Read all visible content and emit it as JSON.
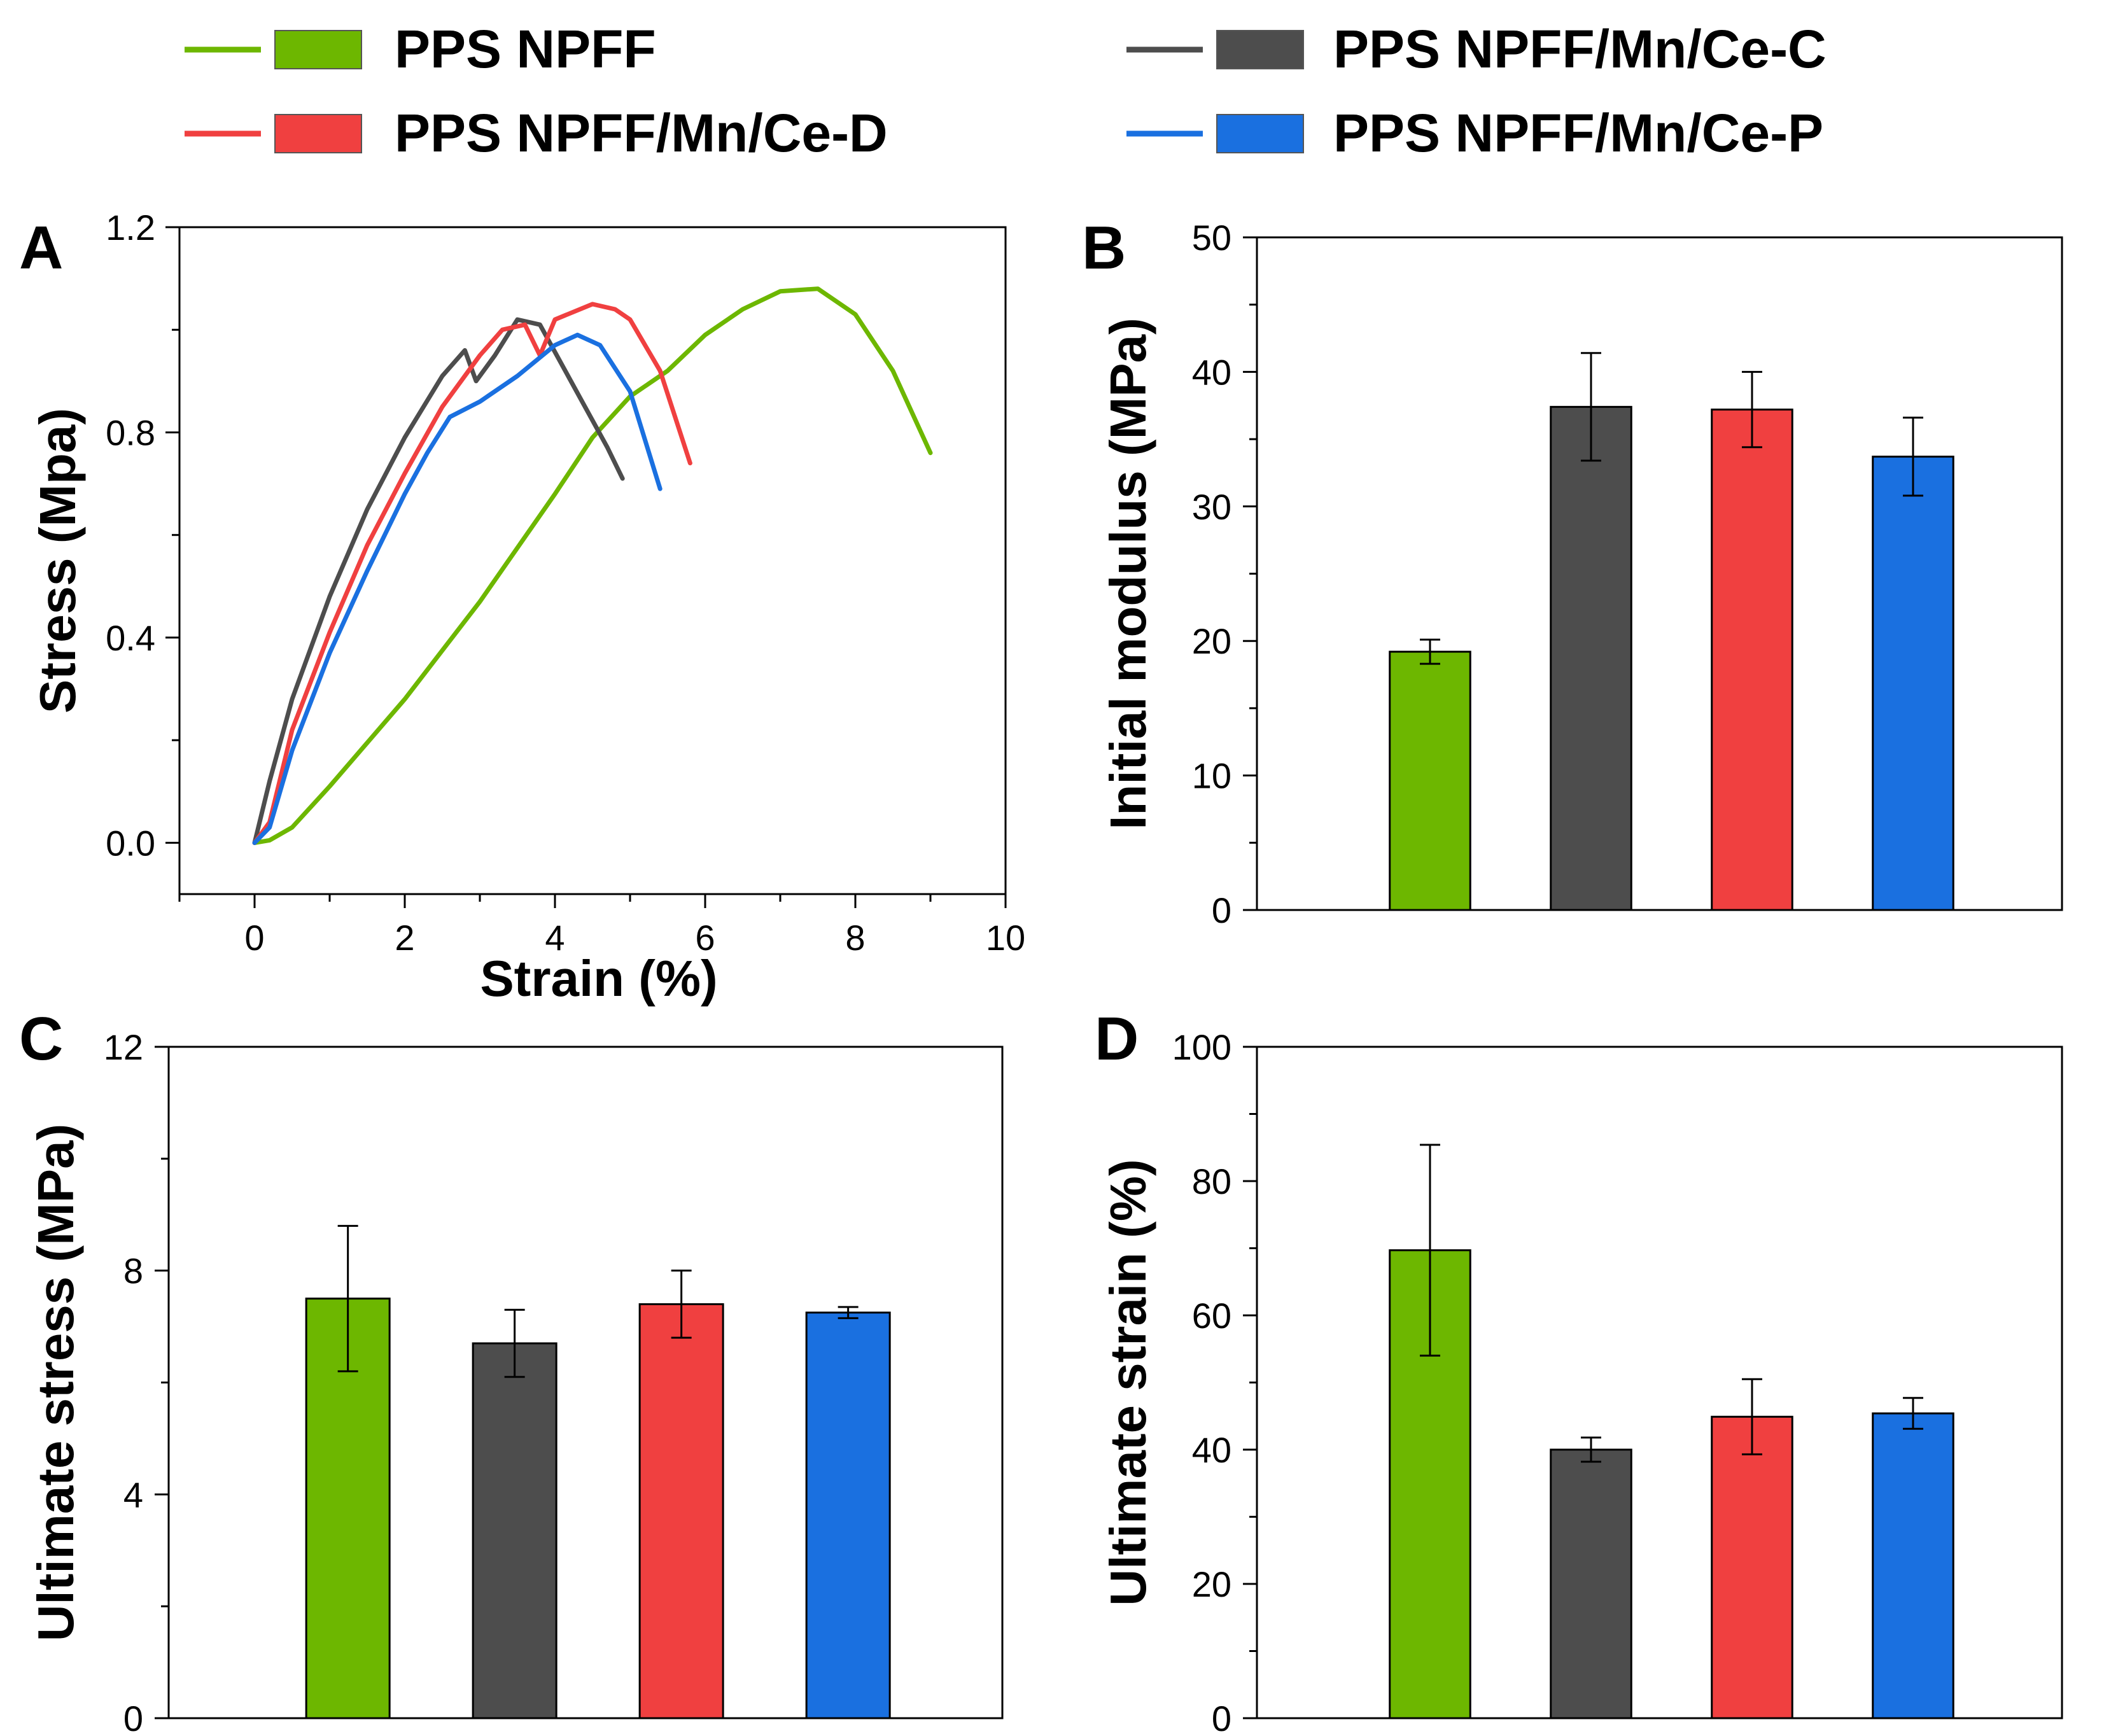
{
  "colors": {
    "green": "#6DB700",
    "gray": "#4D4D4D",
    "red": "#F04040",
    "blue": "#1A70E0",
    "axis": "#000000"
  },
  "legend": [
    {
      "label": "PPS NPFF",
      "color": "#6DB700"
    },
    {
      "label": "PPS NPFF/Mn/Ce-C",
      "color": "#4D4D4D"
    },
    {
      "label": "PPS NPFF/Mn/Ce-D",
      "color": "#F04040"
    },
    {
      "label": "PPS NPFF/Mn/Ce-P",
      "color": "#1A70E0"
    }
  ],
  "chart_data": [
    {
      "panel": "A",
      "type": "line",
      "xlabel": "Strain (%)",
      "ylabel": "Stress (Mpa)",
      "xlim": [
        -1,
        10
      ],
      "ylim": [
        -0.1,
        1.2
      ],
      "xticks": [
        0,
        2,
        4,
        6,
        8,
        10
      ],
      "yticks": [
        0.0,
        0.4,
        0.8,
        1.2
      ],
      "xtick_labels": [
        "0",
        "2",
        "4",
        "6",
        "8",
        "10"
      ],
      "ytick_labels": [
        "0.0",
        "0.4",
        "0.8",
        "1.2"
      ],
      "series": [
        {
          "name": "PPS NPFF",
          "color": "#6DB700",
          "x": [
            0,
            0.2,
            0.5,
            1.0,
            2.0,
            3.0,
            4.0,
            4.5,
            5.0,
            5.5,
            6.0,
            6.5,
            7.0,
            7.5,
            8.0,
            8.5,
            9.0
          ],
          "y": [
            0,
            0.005,
            0.03,
            0.11,
            0.28,
            0.47,
            0.68,
            0.79,
            0.87,
            0.92,
            0.99,
            1.04,
            1.075,
            1.08,
            1.03,
            0.92,
            0.76
          ]
        },
        {
          "name": "PPS NPFF/Mn/Ce-C",
          "color": "#4D4D4D",
          "x": [
            0,
            0.2,
            0.5,
            1.0,
            1.5,
            2.0,
            2.5,
            2.8,
            2.95,
            3.2,
            3.5,
            3.8,
            4.1,
            4.4,
            4.7,
            4.9
          ],
          "y": [
            0,
            0.12,
            0.28,
            0.48,
            0.65,
            0.79,
            0.91,
            0.96,
            0.9,
            0.95,
            1.02,
            1.01,
            0.93,
            0.85,
            0.77,
            0.71
          ]
        },
        {
          "name": "PPS NPFF/Mn/Ce-D",
          "color": "#F04040",
          "x": [
            0,
            0.2,
            0.5,
            1.0,
            1.5,
            2.0,
            2.5,
            3.0,
            3.3,
            3.6,
            3.8,
            4.0,
            4.5,
            4.8,
            5.0,
            5.4,
            5.8
          ],
          "y": [
            0,
            0.04,
            0.22,
            0.41,
            0.58,
            0.72,
            0.85,
            0.95,
            1.0,
            1.01,
            0.95,
            1.02,
            1.05,
            1.04,
            1.02,
            0.92,
            0.74
          ]
        },
        {
          "name": "PPS NPFF/Mn/Ce-P",
          "color": "#1A70E0",
          "x": [
            0,
            0.2,
            0.5,
            1.0,
            1.5,
            2.0,
            2.3,
            2.6,
            3.0,
            3.5,
            4.0,
            4.3,
            4.6,
            5.0,
            5.4
          ],
          "y": [
            0,
            0.03,
            0.18,
            0.37,
            0.53,
            0.68,
            0.76,
            0.83,
            0.86,
            0.91,
            0.97,
            0.99,
            0.97,
            0.88,
            0.69
          ]
        }
      ]
    },
    {
      "panel": "B",
      "type": "bar",
      "ylabel": "Initial modulus (MPa)",
      "ylim": [
        0,
        50
      ],
      "yticks": [
        0,
        10,
        20,
        30,
        40,
        50
      ],
      "ytick_labels": [
        "0",
        "10",
        "20",
        "30",
        "40",
        "50"
      ],
      "categories": [
        "PPS NPFF",
        "PPS NPFF/Mn/Ce-C",
        "PPS NPFF/Mn/Ce-D",
        "PPS NPFF/Mn/Ce-P"
      ],
      "values": [
        19.2,
        37.4,
        37.2,
        33.7
      ],
      "errors": [
        0.9,
        4.0,
        2.8,
        2.9
      ]
    },
    {
      "panel": "C",
      "type": "bar",
      "ylabel": "Ultimate stress (MPa)",
      "ylim": [
        0,
        12
      ],
      "yticks": [
        0,
        4,
        8,
        12
      ],
      "ytick_labels": [
        "0",
        "4",
        "8",
        "12"
      ],
      "categories": [
        "PPS NPFF",
        "PPS NPFF/Mn/Ce-C",
        "PPS NPFF/Mn/Ce-D",
        "PPS NPFF/Mn/Ce-P"
      ],
      "values": [
        7.5,
        6.7,
        7.4,
        7.25
      ],
      "errors": [
        1.3,
        0.6,
        0.6,
        0.1
      ]
    },
    {
      "panel": "D",
      "type": "bar",
      "ylabel": "Ultimate strain (%)",
      "ylim": [
        0,
        100
      ],
      "yticks": [
        0,
        20,
        40,
        60,
        80,
        100
      ],
      "ytick_labels": [
        "0",
        "20",
        "40",
        "60",
        "80",
        "100"
      ],
      "categories": [
        "PPS NPFF",
        "PPS NPFF/Mn/Ce-C",
        "PPS NPFF/Mn/Ce-D",
        "PPS NPFF/Mn/Ce-P"
      ],
      "values": [
        69.7,
        40.0,
        44.9,
        45.4
      ],
      "errors": [
        15.7,
        1.8,
        5.6,
        2.3
      ]
    }
  ]
}
